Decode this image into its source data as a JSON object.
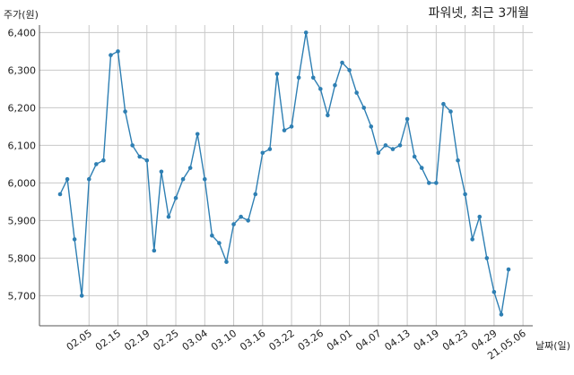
{
  "chart_data": {
    "type": "line",
    "title": "파워넷, 최근 3개월",
    "ylabel": "주가(원)",
    "xlabel": "날짜(일)",
    "ylim": [
      5620,
      6420
    ],
    "y_ticks": [
      5700,
      5800,
      5900,
      6000,
      6100,
      6200,
      6300,
      6400
    ],
    "y_tick_labels": [
      "5,700",
      "5,800",
      "5,900",
      "6,000",
      "6,100",
      "6,200",
      "6,300",
      "6,400"
    ],
    "x_tick_labels": [
      "02.05",
      "02.15",
      "02.19",
      "02.25",
      "03.04",
      "03.10",
      "03.16",
      "03.22",
      "03.26",
      "04.01",
      "04.07",
      "04.13",
      "04.19",
      "04.23",
      "04.29",
      "21.05.06"
    ],
    "x_tick_index": [
      4,
      8,
      12,
      16,
      20,
      24,
      28,
      32,
      36,
      40,
      44,
      48,
      52,
      56,
      60,
      64
    ],
    "grid": true,
    "line_color": "#2e7fb3",
    "series": [
      {
        "values": [
          5970,
          6010,
          5850,
          5700,
          6010,
          6050,
          6060,
          6340,
          6350,
          6190,
          6100,
          6070,
          6060,
          5820,
          6030,
          5910,
          5960,
          6010,
          6040,
          6130,
          6010,
          5860,
          5840,
          5790,
          5890,
          5910,
          5900,
          5970,
          6080,
          6090,
          6290,
          6140,
          6150,
          6280,
          6400,
          6280,
          6250,
          6180,
          6260,
          6320,
          6300,
          6240,
          6200,
          6150,
          6080,
          6100,
          6090,
          6100,
          6170,
          6070,
          6040,
          6000,
          6000,
          6210,
          6190,
          6060,
          5970,
          5850,
          5910,
          5800,
          5710,
          5650,
          5770
        ]
      }
    ]
  }
}
